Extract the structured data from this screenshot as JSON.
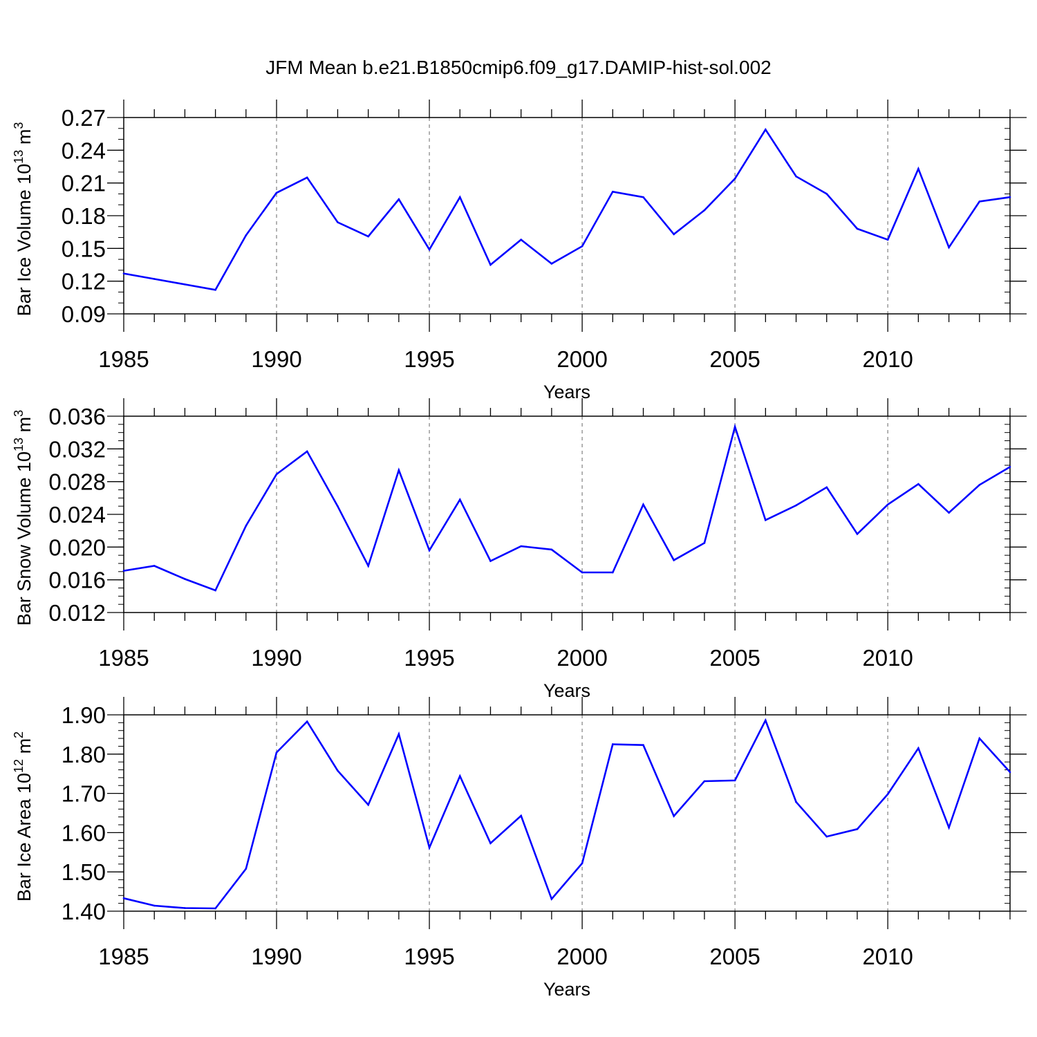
{
  "title": "JFM Mean b.e21.B1850cmip6.f09_g17.DAMIP-hist-sol.002",
  "colors": {
    "series": "#0000ff",
    "axes": "#000000",
    "grid": "#999999"
  },
  "chart_data": [
    {
      "type": "line",
      "ylabel": {
        "text": "Bar Ice Volume 10",
        "exponent": "13",
        "unit": "m",
        "unit_exponent": "3"
      },
      "xlabel": "Years",
      "xlim": [
        1985,
        2014
      ],
      "ylim": [
        0.09,
        0.27
      ],
      "xticks": [
        1985,
        1990,
        1995,
        2000,
        2005,
        2010
      ],
      "yticks": [
        "0.09",
        "0.12",
        "0.15",
        "0.18",
        "0.21",
        "0.24",
        "0.27"
      ],
      "grid": "vertical dashed at major x ticks",
      "x": [
        1985,
        1986,
        1987,
        1988,
        1989,
        1990,
        1991,
        1992,
        1993,
        1994,
        1995,
        1996,
        1997,
        1998,
        1999,
        2000,
        2001,
        2002,
        2003,
        2004,
        2005,
        2006,
        2007,
        2008,
        2009,
        2010,
        2011,
        2012,
        2013,
        2014
      ],
      "values": [
        0.127,
        0.122,
        0.117,
        0.112,
        0.162,
        0.201,
        0.215,
        0.174,
        0.161,
        0.195,
        0.149,
        0.197,
        0.135,
        0.158,
        0.136,
        0.152,
        0.202,
        0.197,
        0.163,
        0.185,
        0.214,
        0.259,
        0.216,
        0.2,
        0.168,
        0.158,
        0.223,
        0.151,
        0.193,
        0.197
      ]
    },
    {
      "type": "line",
      "ylabel": {
        "text": "Bar Snow Volume 10",
        "exponent": "13",
        "unit": "m",
        "unit_exponent": "3"
      },
      "xlabel": "Years",
      "xlim": [
        1985,
        2014
      ],
      "ylim": [
        0.012,
        0.036
      ],
      "xticks": [
        1985,
        1990,
        1995,
        2000,
        2005,
        2010
      ],
      "yticks": [
        "0.012",
        "0.016",
        "0.020",
        "0.024",
        "0.028",
        "0.032",
        "0.036"
      ],
      "grid": "vertical dashed at major x ticks",
      "x": [
        1985,
        1986,
        1987,
        1988,
        1989,
        1990,
        1991,
        1992,
        1993,
        1994,
        1995,
        1996,
        1997,
        1998,
        1999,
        2000,
        2001,
        2002,
        2003,
        2004,
        2005,
        2006,
        2007,
        2008,
        2009,
        2010,
        2011,
        2012,
        2013,
        2014
      ],
      "values": [
        0.0171,
        0.0177,
        0.0161,
        0.0147,
        0.0226,
        0.0289,
        0.0317,
        0.025,
        0.0177,
        0.0294,
        0.0196,
        0.0258,
        0.0183,
        0.0201,
        0.0197,
        0.0169,
        0.0169,
        0.0252,
        0.0184,
        0.0205,
        0.0347,
        0.0233,
        0.0251,
        0.0273,
        0.0216,
        0.0252,
        0.0277,
        0.0242,
        0.0276,
        0.0298
      ]
    },
    {
      "type": "line",
      "ylabel": {
        "text": "Bar Ice Area 10",
        "exponent": "12",
        "unit": "m",
        "unit_exponent": "2"
      },
      "xlabel": "Years",
      "xlim": [
        1985,
        2014
      ],
      "ylim": [
        1.4,
        1.9
      ],
      "xticks": [
        1985,
        1990,
        1995,
        2000,
        2005,
        2010
      ],
      "yticks": [
        "1.40",
        "1.50",
        "1.60",
        "1.70",
        "1.80",
        "1.90"
      ],
      "grid": "vertical dashed at major x ticks",
      "x": [
        1985,
        1986,
        1987,
        1988,
        1989,
        1990,
        1991,
        1992,
        1993,
        1994,
        1995,
        1996,
        1997,
        1998,
        1999,
        2000,
        2001,
        2002,
        2003,
        2004,
        2005,
        2006,
        2007,
        2008,
        2009,
        2010,
        2011,
        2012,
        2013,
        2014
      ],
      "values": [
        1.433,
        1.414,
        1.408,
        1.407,
        1.508,
        1.804,
        1.883,
        1.758,
        1.671,
        1.851,
        1.562,
        1.744,
        1.573,
        1.643,
        1.431,
        1.522,
        1.825,
        1.823,
        1.642,
        1.731,
        1.733,
        1.886,
        1.678,
        1.59,
        1.609,
        1.698,
        1.815,
        1.613,
        1.84,
        1.754
      ]
    }
  ]
}
